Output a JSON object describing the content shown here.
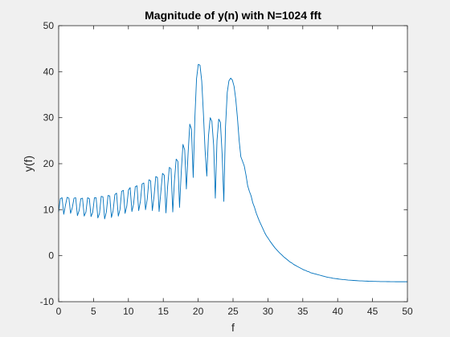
{
  "chart_data": {
    "type": "line",
    "title": "Magnitude of y(n) with N=1024 fft",
    "xlabel": "f",
    "ylabel": "y(f)",
    "xlim": [
      0,
      50
    ],
    "ylim": [
      -10,
      50
    ],
    "xticks": [
      0,
      5,
      10,
      15,
      20,
      25,
      30,
      35,
      40,
      45,
      50
    ],
    "yticks": [
      -10,
      0,
      10,
      20,
      30,
      40,
      50
    ],
    "grid": false,
    "series": [
      {
        "color": "#0072bd",
        "points": [
          [
            0.0,
            9.5
          ],
          [
            0.24,
            12.4
          ],
          [
            0.49,
            12.6
          ],
          [
            0.73,
            9.0
          ],
          [
            0.98,
            11.0
          ],
          [
            1.22,
            12.7
          ],
          [
            1.47,
            12.5
          ],
          [
            1.71,
            9.2
          ],
          [
            1.95,
            10.4
          ],
          [
            2.2,
            12.5
          ],
          [
            2.44,
            12.6
          ],
          [
            2.69,
            8.7
          ],
          [
            2.93,
            9.8
          ],
          [
            3.18,
            12.4
          ],
          [
            3.42,
            12.5
          ],
          [
            3.66,
            8.6
          ],
          [
            3.91,
            9.5
          ],
          [
            4.15,
            12.6
          ],
          [
            4.4,
            12.4
          ],
          [
            4.64,
            8.5
          ],
          [
            4.88,
            9.4
          ],
          [
            5.13,
            12.6
          ],
          [
            5.37,
            12.6
          ],
          [
            5.62,
            8.2
          ],
          [
            5.86,
            9.2
          ],
          [
            6.1,
            12.9
          ],
          [
            6.35,
            12.8
          ],
          [
            6.59,
            8.0
          ],
          [
            6.84,
            9.5
          ],
          [
            7.08,
            13.1
          ],
          [
            7.32,
            13.0
          ],
          [
            7.57,
            8.3
          ],
          [
            7.81,
            9.8
          ],
          [
            8.06,
            13.3
          ],
          [
            8.3,
            13.6
          ],
          [
            8.55,
            8.6
          ],
          [
            8.79,
            10.0
          ],
          [
            9.03,
            14.0
          ],
          [
            9.28,
            14.2
          ],
          [
            9.52,
            9.2
          ],
          [
            9.77,
            10.8
          ],
          [
            10.01,
            14.3
          ],
          [
            10.25,
            14.8
          ],
          [
            10.5,
            9.6
          ],
          [
            10.74,
            11.2
          ],
          [
            10.99,
            15.0
          ],
          [
            11.23,
            15.2
          ],
          [
            11.47,
            9.8
          ],
          [
            11.72,
            11.8
          ],
          [
            11.96,
            15.6
          ],
          [
            12.21,
            15.8
          ],
          [
            12.45,
            10.0
          ],
          [
            12.7,
            12.3
          ],
          [
            12.94,
            16.5
          ],
          [
            13.18,
            16.3
          ],
          [
            13.43,
            9.8
          ],
          [
            13.67,
            12.8
          ],
          [
            13.92,
            17.2
          ],
          [
            14.16,
            17.0
          ],
          [
            14.4,
            9.6
          ],
          [
            14.65,
            13.8
          ],
          [
            14.89,
            17.9
          ],
          [
            15.14,
            17.5
          ],
          [
            15.38,
            9.3
          ],
          [
            15.62,
            15.0
          ],
          [
            15.87,
            19.2
          ],
          [
            16.11,
            18.9
          ],
          [
            16.36,
            9.5
          ],
          [
            16.6,
            16.3
          ],
          [
            16.85,
            21.0
          ],
          [
            17.09,
            20.5
          ],
          [
            17.33,
            10.5
          ],
          [
            17.58,
            18.3
          ],
          [
            17.82,
            24.2
          ],
          [
            18.07,
            23.0
          ],
          [
            18.31,
            14.5
          ],
          [
            18.55,
            22.0
          ],
          [
            18.8,
            28.6
          ],
          [
            19.04,
            27.5
          ],
          [
            19.29,
            17.0
          ],
          [
            19.53,
            30.0
          ],
          [
            19.77,
            38.5
          ],
          [
            20.02,
            41.6
          ],
          [
            20.26,
            41.4
          ],
          [
            20.51,
            38.0
          ],
          [
            20.75,
            31.0
          ],
          [
            20.99,
            23.0
          ],
          [
            21.24,
            17.3
          ],
          [
            21.48,
            26.0
          ],
          [
            21.73,
            30.0
          ],
          [
            21.97,
            29.2
          ],
          [
            22.22,
            24.0
          ],
          [
            22.46,
            12.5
          ],
          [
            22.7,
            25.0
          ],
          [
            22.95,
            29.7
          ],
          [
            23.19,
            29.0
          ],
          [
            23.44,
            22.0
          ],
          [
            23.68,
            11.8
          ],
          [
            23.92,
            28.0
          ],
          [
            24.17,
            35.5
          ],
          [
            24.41,
            38.0
          ],
          [
            24.66,
            38.6
          ],
          [
            24.9,
            38.2
          ],
          [
            25.15,
            36.8
          ],
          [
            25.39,
            34.0
          ],
          [
            25.63,
            30.0
          ],
          [
            25.88,
            25.0
          ],
          [
            26.12,
            21.5
          ],
          [
            26.37,
            20.5
          ],
          [
            26.61,
            19.5
          ],
          [
            26.86,
            17.5
          ],
          [
            27.1,
            15.2
          ],
          [
            27.34,
            14.0
          ],
          [
            27.59,
            13.0
          ],
          [
            27.83,
            11.5
          ],
          [
            28.08,
            10.5
          ],
          [
            28.32,
            9.3
          ],
          [
            28.57,
            8.3
          ],
          [
            28.81,
            7.4
          ],
          [
            29.06,
            6.6
          ],
          [
            29.3,
            5.8
          ],
          [
            29.54,
            5.0
          ],
          [
            29.79,
            4.3
          ],
          [
            30.03,
            3.8
          ],
          [
            30.28,
            3.2
          ],
          [
            30.52,
            2.7
          ],
          [
            30.76,
            2.2
          ],
          [
            31.01,
            1.7
          ],
          [
            31.25,
            1.3
          ],
          [
            31.5,
            0.9
          ],
          [
            31.74,
            0.5
          ],
          [
            31.98,
            0.2
          ],
          [
            32.23,
            -0.2
          ],
          [
            32.47,
            -0.5
          ],
          [
            32.72,
            -0.8
          ],
          [
            32.96,
            -1.1
          ],
          [
            33.2,
            -1.4
          ],
          [
            33.45,
            -1.6
          ],
          [
            33.69,
            -1.9
          ],
          [
            33.94,
            -2.1
          ],
          [
            34.18,
            -2.3
          ],
          [
            34.42,
            -2.5
          ],
          [
            34.67,
            -2.7
          ],
          [
            34.91,
            -2.9
          ],
          [
            35.16,
            -3.1
          ],
          [
            35.4,
            -3.2
          ],
          [
            35.64,
            -3.4
          ],
          [
            35.89,
            -3.5
          ],
          [
            36.13,
            -3.7
          ],
          [
            36.38,
            -3.8
          ],
          [
            36.62,
            -3.9
          ],
          [
            36.87,
            -4.0
          ],
          [
            37.11,
            -4.1
          ],
          [
            37.35,
            -4.2
          ],
          [
            37.6,
            -4.3
          ],
          [
            37.84,
            -4.4
          ],
          [
            38.09,
            -4.5
          ],
          [
            38.33,
            -4.6
          ],
          [
            38.57,
            -4.7
          ],
          [
            38.82,
            -4.75
          ],
          [
            39.06,
            -4.8
          ],
          [
            39.31,
            -4.9
          ],
          [
            39.55,
            -4.95
          ],
          [
            39.79,
            -5.0
          ],
          [
            40.04,
            -5.05
          ],
          [
            40.28,
            -5.1
          ],
          [
            40.53,
            -5.15
          ],
          [
            40.77,
            -5.2
          ],
          [
            41.02,
            -5.22
          ],
          [
            41.26,
            -5.25
          ],
          [
            41.5,
            -5.3
          ],
          [
            41.75,
            -5.32
          ],
          [
            41.99,
            -5.35
          ],
          [
            42.24,
            -5.38
          ],
          [
            42.48,
            -5.4
          ],
          [
            42.72,
            -5.42
          ],
          [
            42.97,
            -5.45
          ],
          [
            43.21,
            -5.47
          ],
          [
            43.46,
            -5.48
          ],
          [
            43.7,
            -5.5
          ],
          [
            43.94,
            -5.52
          ],
          [
            44.19,
            -5.53
          ],
          [
            44.43,
            -5.55
          ],
          [
            44.68,
            -5.56
          ],
          [
            44.92,
            -5.57
          ],
          [
            45.16,
            -5.58
          ],
          [
            45.41,
            -5.59
          ],
          [
            45.65,
            -5.6
          ],
          [
            45.9,
            -5.61
          ],
          [
            46.14,
            -5.62
          ],
          [
            46.38,
            -5.62
          ],
          [
            46.63,
            -5.63
          ],
          [
            46.87,
            -5.63
          ],
          [
            47.12,
            -5.64
          ],
          [
            47.36,
            -5.64
          ],
          [
            47.6,
            -5.65
          ],
          [
            47.85,
            -5.65
          ],
          [
            48.09,
            -5.65
          ],
          [
            48.34,
            -5.66
          ],
          [
            48.58,
            -5.66
          ],
          [
            48.82,
            -5.66
          ],
          [
            49.07,
            -5.66
          ],
          [
            49.31,
            -5.66
          ],
          [
            49.56,
            -5.66
          ],
          [
            49.8,
            -5.66
          ],
          [
            50.0,
            -5.66
          ]
        ]
      }
    ]
  }
}
